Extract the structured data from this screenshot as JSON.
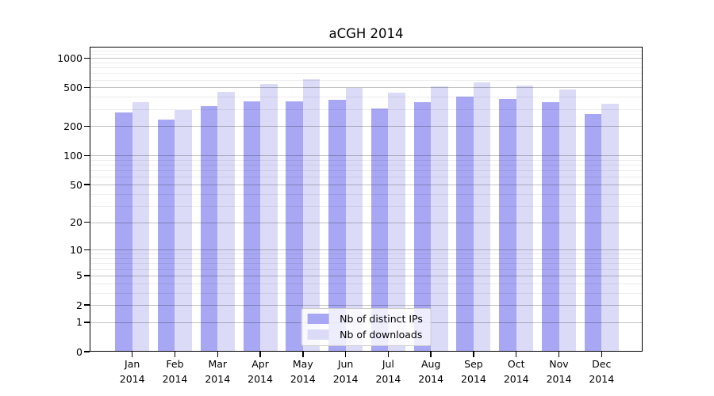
{
  "chart_data": {
    "type": "bar",
    "title": "aCGH 2014",
    "categories": [
      "Jan",
      "Feb",
      "Mar",
      "Apr",
      "May",
      "Jun",
      "Jul",
      "Aug",
      "Sep",
      "Oct",
      "Nov",
      "Dec"
    ],
    "x_year_label": "2014",
    "series": [
      {
        "name": "Nb of distinct IPs",
        "color": "#a7a7f3",
        "values": [
          279,
          236,
          321,
          361,
          363,
          375,
          307,
          352,
          406,
          380,
          354,
          268
        ]
      },
      {
        "name": "Nb of downloads",
        "color": "#dbdbf8",
        "values": [
          352,
          294,
          454,
          548,
          609,
          499,
          446,
          515,
          565,
          528,
          481,
          342
        ]
      }
    ],
    "y_ticks": [
      0,
      1,
      2,
      5,
      10,
      20,
      50,
      100,
      200,
      500,
      1000
    ],
    "y_scale": "log10(1+x)",
    "ylim": [
      0,
      1286
    ],
    "grid": true,
    "legend_position": "lower center",
    "frame_color": "#000000",
    "background_color": "#ffffff"
  }
}
